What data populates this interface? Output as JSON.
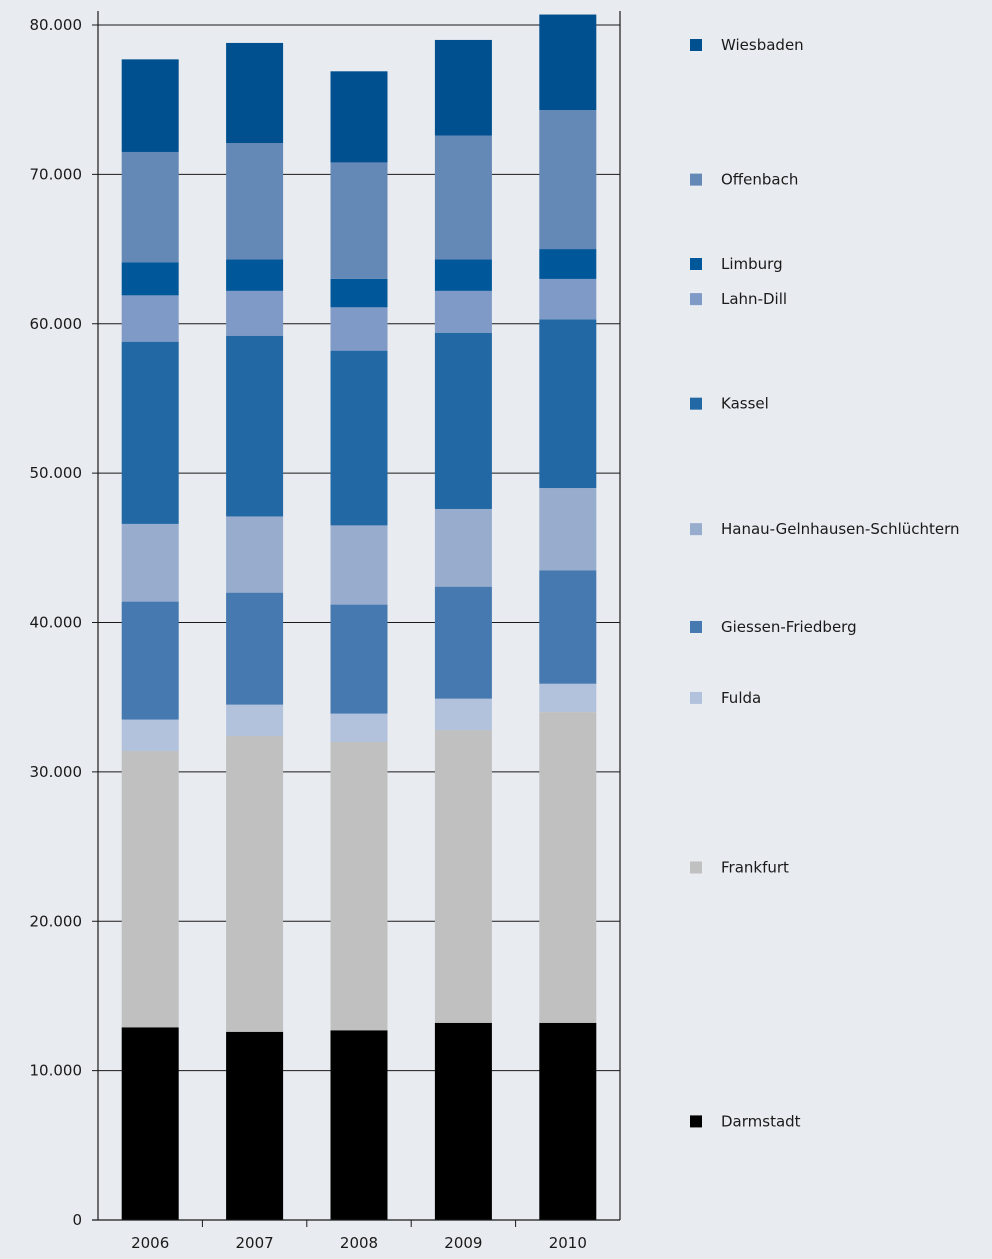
{
  "chart_data": {
    "type": "bar",
    "stacked": true,
    "categories": [
      "2006",
      "2007",
      "2008",
      "2009",
      "2010"
    ],
    "ylim": [
      0,
      80000
    ],
    "yticks": [
      0,
      10000,
      20000,
      30000,
      40000,
      50000,
      60000,
      70000,
      80000
    ],
    "ytick_labels": [
      "0",
      "10.000",
      "20.000",
      "30.000",
      "40.000",
      "50.000",
      "60.000",
      "70.000",
      "80.000"
    ],
    "grid": true,
    "legend_position": "right",
    "series": [
      {
        "name": "Darmstadt",
        "color": "#000000",
        "values": [
          12900,
          12600,
          12700,
          13200,
          13200
        ]
      },
      {
        "name": "Frankfurt",
        "color": "#c0c0c0",
        "values": [
          18500,
          19800,
          19300,
          19600,
          20800
        ]
      },
      {
        "name": "Fulda",
        "color": "#b3c2dc",
        "values": [
          2100,
          2100,
          1900,
          2100,
          1900
        ]
      },
      {
        "name": "Giessen-Friedberg",
        "color": "#4679b0",
        "values": [
          7900,
          7500,
          7300,
          7500,
          7600
        ]
      },
      {
        "name": "Hanau-Gelnhausen-Schlüchtern",
        "color": "#98acce",
        "values": [
          5200,
          5100,
          5300,
          5200,
          5500
        ]
      },
      {
        "name": "Kassel",
        "color": "#2268a4",
        "values": [
          12200,
          12100,
          11700,
          11800,
          11300
        ]
      },
      {
        "name": "Lahn-Dill",
        "color": "#7f9ac6",
        "values": [
          3100,
          3000,
          2900,
          2800,
          2700
        ]
      },
      {
        "name": "Limburg",
        "color": "#00589a",
        "values": [
          2200,
          2100,
          1900,
          2100,
          2000
        ]
      },
      {
        "name": "Offenbach",
        "color": "#6589b6",
        "values": [
          7400,
          7800,
          7800,
          8300,
          9300
        ]
      },
      {
        "name": "Wiesbaden",
        "color": "#00508f",
        "values": [
          6200,
          6700,
          6100,
          6400,
          6400
        ]
      }
    ]
  }
}
